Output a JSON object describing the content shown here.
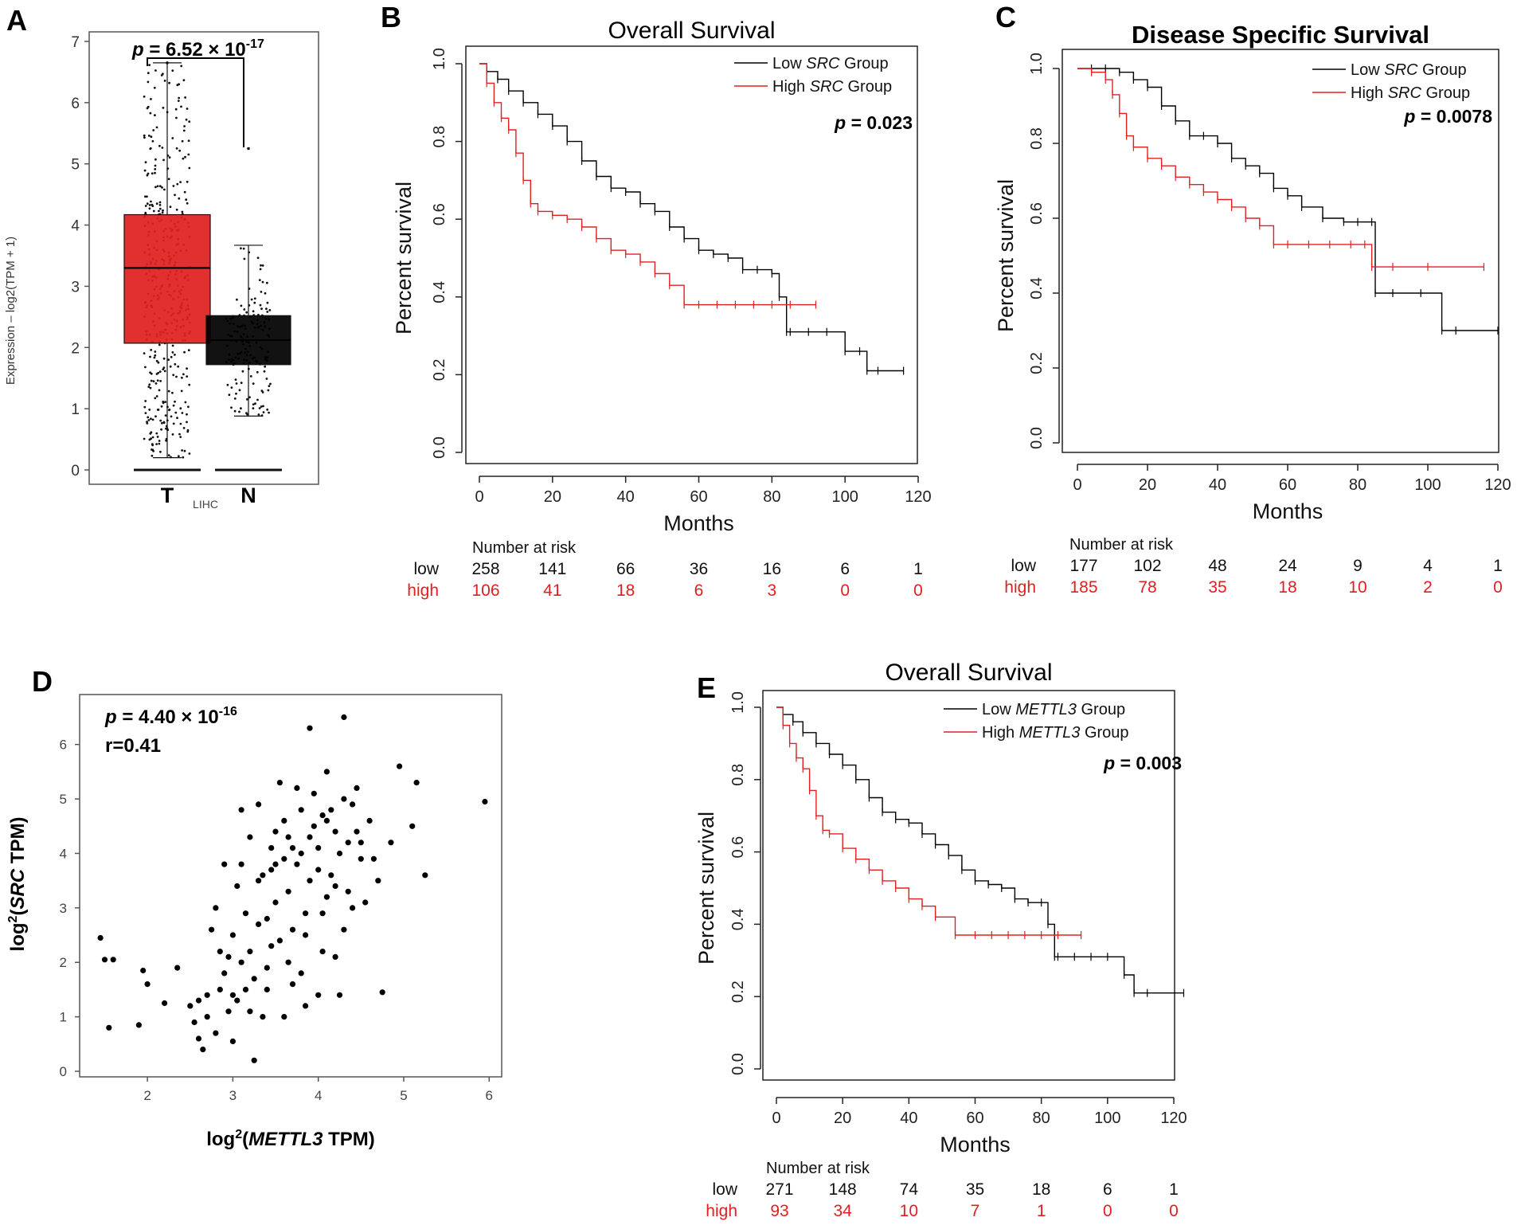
{
  "colors": {
    "low": "#000000",
    "high": "#e02020",
    "tumor": "#e02020",
    "normal": "#000000",
    "axis": "#555555"
  },
  "chart_data": [
    {
      "panel": "A",
      "type": "box",
      "ylabel": "Expression – log2(TPM + 1)",
      "ylim": [
        0,
        7
      ],
      "yticks": [
        "0",
        "1",
        "2",
        "3",
        "4",
        "5",
        "6",
        "7"
      ],
      "xlabel": "LIHC",
      "categories": [
        "T",
        "N"
      ],
      "pvalue_prefix": "p",
      "pvalue_text": " = 6.52 × 10",
      "pvalue_exp": "-17",
      "boxes": [
        {
          "name": "T",
          "whisker_low": 0.2,
          "q1": 2.07,
          "median": 3.3,
          "q3": 4.17,
          "whisker_high": 6.65,
          "max_point": 6.65
        },
        {
          "name": "N",
          "whisker_low": 0.88,
          "q1": 1.72,
          "median": 2.12,
          "q3": 2.52,
          "whisker_high": 3.67,
          "max_point": 5.25
        }
      ]
    },
    {
      "panel": "B",
      "type": "line",
      "title": "Overall Survival",
      "xlabel": "Months",
      "ylabel": "Percent survival",
      "xlim": [
        0,
        120
      ],
      "ylim": [
        0,
        1
      ],
      "xticks": [
        "0",
        "20",
        "40",
        "60",
        "80",
        "100",
        "120"
      ],
      "yticks": [
        "0.0",
        "0.2",
        "0.4",
        "0.6",
        "0.8",
        "1.0"
      ],
      "legend": {
        "low_prefix": "Low ",
        "high_prefix": "High ",
        "gene": "SRC",
        "suffix": " Group"
      },
      "pvalue_prefix": "p",
      "pvalue_text": " = 0.023",
      "series": [
        {
          "name": "low",
          "x": [
            0,
            2,
            5,
            8,
            12,
            16,
            20,
            24,
            28,
            32,
            36,
            40,
            44,
            48,
            52,
            56,
            60,
            64,
            68,
            72,
            76,
            80,
            82,
            84,
            85,
            90,
            95,
            100,
            104,
            106,
            109,
            116
          ],
          "y": [
            1,
            0.98,
            0.96,
            0.93,
            0.9,
            0.87,
            0.84,
            0.8,
            0.75,
            0.71,
            0.68,
            0.67,
            0.64,
            0.62,
            0.58,
            0.55,
            0.52,
            0.51,
            0.5,
            0.47,
            0.47,
            0.46,
            0.4,
            0.31,
            0.31,
            0.31,
            0.31,
            0.26,
            0.26,
            0.21,
            0.21,
            0.21
          ]
        },
        {
          "name": "high",
          "x": [
            0,
            2,
            4,
            6,
            8,
            10,
            12,
            14,
            16,
            20,
            24,
            28,
            32,
            36,
            40,
            44,
            48,
            52,
            56,
            60,
            65,
            70,
            75,
            80,
            85,
            92
          ],
          "y": [
            1,
            0.95,
            0.9,
            0.86,
            0.83,
            0.77,
            0.7,
            0.64,
            0.62,
            0.61,
            0.6,
            0.58,
            0.55,
            0.52,
            0.51,
            0.49,
            0.46,
            0.43,
            0.38,
            0.38,
            0.38,
            0.38,
            0.38,
            0.38,
            0.38,
            0.38
          ]
        }
      ],
      "risk": {
        "title": "Number at risk",
        "low_label": "low",
        "high_label": "high",
        "low": [
          "258",
          "141",
          "66",
          "36",
          "16",
          "6",
          "1"
        ],
        "high": [
          "106",
          "41",
          "18",
          "6",
          "3",
          "0",
          "0"
        ]
      }
    },
    {
      "panel": "C",
      "type": "line",
      "title": "Disease Specific Survival",
      "xlabel": "Months",
      "ylabel": "Percent survival",
      "xlim": [
        0,
        120
      ],
      "ylim": [
        0,
        1
      ],
      "xticks": [
        "0",
        "20",
        "40",
        "60",
        "80",
        "100",
        "120"
      ],
      "yticks": [
        "0.0",
        "0.2",
        "0.4",
        "0.6",
        "0.8",
        "1.0"
      ],
      "legend": {
        "low_prefix": "Low ",
        "high_prefix": "High ",
        "gene": "SRC",
        "suffix": " Group"
      },
      "pvalue_prefix": "p",
      "pvalue_text": " = 0.0078",
      "series": [
        {
          "name": "low",
          "x": [
            0,
            4,
            8,
            12,
            16,
            20,
            24,
            28,
            32,
            36,
            40,
            44,
            48,
            52,
            56,
            60,
            64,
            70,
            76,
            80,
            84,
            85,
            90,
            98,
            104,
            108,
            120
          ],
          "y": [
            1,
            1,
            1,
            0.99,
            0.97,
            0.95,
            0.9,
            0.86,
            0.82,
            0.82,
            0.8,
            0.76,
            0.74,
            0.72,
            0.68,
            0.66,
            0.63,
            0.6,
            0.59,
            0.59,
            0.59,
            0.4,
            0.4,
            0.4,
            0.3,
            0.3,
            0.3
          ]
        },
        {
          "name": "high",
          "x": [
            0,
            4,
            8,
            10,
            12,
            14,
            16,
            20,
            24,
            28,
            32,
            36,
            40,
            44,
            48,
            52,
            56,
            60,
            66,
            72,
            78,
            82,
            84,
            90,
            100,
            116
          ],
          "y": [
            1,
            0.99,
            0.97,
            0.93,
            0.88,
            0.82,
            0.79,
            0.76,
            0.74,
            0.71,
            0.69,
            0.67,
            0.65,
            0.63,
            0.6,
            0.58,
            0.53,
            0.53,
            0.53,
            0.53,
            0.53,
            0.53,
            0.47,
            0.47,
            0.47,
            0.47
          ]
        }
      ],
      "risk": {
        "title": "Number at risk",
        "low_label": "low",
        "high_label": "high",
        "low": [
          "177",
          "102",
          "48",
          "24",
          "9",
          "4",
          "1"
        ],
        "high": [
          "185",
          "78",
          "35",
          "18",
          "10",
          "2",
          "0"
        ]
      }
    },
    {
      "panel": "D",
      "type": "scatter",
      "xlabel_prefix": "log",
      "xlabel_sup": "2",
      "xlabel_gene": "METTL3",
      "xlabel_suffix": " TPM)",
      "ylabel_prefix": "log",
      "ylabel_sup": "2",
      "ylabel_gene": "SRC",
      "ylabel_suffix": " TPM)",
      "xlim": [
        1.3,
        6.1
      ],
      "ylim": [
        0,
        6.8
      ],
      "xticks": [
        "2",
        "3",
        "4",
        "5",
        "6"
      ],
      "yticks": [
        "0",
        "1",
        "2",
        "3",
        "4",
        "5",
        "6"
      ],
      "pvalue_prefix": "p",
      "pvalue_text": " = 4.40 × 10",
      "pvalue_exp": "-16",
      "r_text": "r=0.41",
      "points": [
        [
          1.45,
          2.45
        ],
        [
          1.5,
          2.05
        ],
        [
          1.6,
          2.05
        ],
        [
          1.55,
          0.8
        ],
        [
          1.9,
          0.85
        ],
        [
          1.95,
          1.85
        ],
        [
          2.0,
          1.6
        ],
        [
          2.2,
          1.25
        ],
        [
          2.35,
          1.9
        ],
        [
          2.5,
          1.2
        ],
        [
          2.55,
          0.9
        ],
        [
          2.6,
          0.6
        ],
        [
          2.65,
          0.4
        ],
        [
          2.7,
          1.4
        ],
        [
          2.75,
          2.6
        ],
        [
          2.8,
          3.0
        ],
        [
          2.85,
          2.2
        ],
        [
          2.9,
          3.8
        ],
        [
          2.95,
          1.1
        ],
        [
          3.0,
          0.55
        ],
        [
          3.05,
          3.4
        ],
        [
          3.1,
          2.0
        ],
        [
          3.15,
          1.5
        ],
        [
          3.2,
          4.3
        ],
        [
          3.25,
          0.2
        ],
        [
          3.3,
          2.7
        ],
        [
          3.35,
          3.6
        ],
        [
          3.4,
          1.9
        ],
        [
          3.45,
          4.1
        ],
        [
          3.5,
          3.1
        ],
        [
          3.55,
          2.4
        ],
        [
          3.6,
          4.6
        ],
        [
          3.65,
          3.3
        ],
        [
          3.7,
          1.6
        ],
        [
          3.75,
          5.2
        ],
        [
          3.8,
          4.0
        ],
        [
          3.85,
          2.9
        ],
        [
          3.9,
          6.3
        ],
        [
          3.95,
          4.5
        ],
        [
          4.0,
          3.7
        ],
        [
          4.05,
          2.2
        ],
        [
          4.1,
          5.5
        ],
        [
          4.15,
          4.8
        ],
        [
          4.2,
          3.4
        ],
        [
          4.25,
          1.4
        ],
        [
          4.3,
          6.5
        ],
        [
          4.35,
          4.2
        ],
        [
          4.4,
          3.0
        ],
        [
          4.45,
          5.2
        ],
        [
          4.5,
          3.9
        ],
        [
          4.6,
          4.6
        ],
        [
          4.7,
          3.5
        ],
        [
          4.75,
          1.45
        ],
        [
          4.85,
          4.2
        ],
        [
          4.95,
          5.6
        ],
        [
          5.1,
          4.5
        ],
        [
          5.15,
          5.3
        ],
        [
          5.25,
          3.6
        ],
        [
          5.95,
          4.95
        ],
        [
          2.7,
          1.0
        ],
        [
          2.9,
          1.8
        ],
        [
          3.0,
          2.5
        ],
        [
          3.1,
          3.8
        ],
        [
          3.2,
          2.2
        ],
        [
          3.3,
          4.9
        ],
        [
          3.4,
          2.8
        ],
        [
          3.5,
          4.4
        ],
        [
          3.6,
          3.9
        ],
        [
          3.7,
          2.6
        ],
        [
          3.8,
          4.8
        ],
        [
          3.9,
          3.5
        ],
        [
          4.0,
          4.1
        ],
        [
          4.1,
          3.2
        ],
        [
          4.2,
          4.4
        ],
        [
          4.3,
          2.6
        ],
        [
          4.4,
          4.9
        ],
        [
          3.05,
          1.3
        ],
        [
          3.15,
          2.9
        ],
        [
          3.35,
          1.0
        ],
        [
          3.45,
          3.7
        ],
        [
          3.55,
          5.3
        ],
        [
          3.65,
          4.3
        ],
        [
          3.75,
          3.8
        ],
        [
          3.85,
          1.2
        ],
        [
          3.95,
          5.1
        ],
        [
          4.05,
          4.7
        ],
        [
          4.15,
          3.6
        ],
        [
          4.25,
          4.0
        ],
        [
          4.35,
          3.3
        ],
        [
          2.85,
          1.5
        ],
        [
          2.95,
          2.1
        ],
        [
          3.25,
          1.7
        ],
        [
          3.45,
          2.3
        ],
        [
          3.65,
          2.0
        ],
        [
          3.85,
          2.5
        ],
        [
          4.05,
          2.9
        ],
        [
          4.45,
          4.4
        ],
        [
          4.55,
          3.1
        ],
        [
          2.6,
          1.3
        ],
        [
          2.8,
          0.7
        ],
        [
          3.0,
          1.4
        ],
        [
          3.2,
          1.1
        ],
        [
          3.4,
          1.5
        ],
        [
          3.6,
          1.0
        ],
        [
          3.8,
          1.8
        ],
        [
          4.0,
          1.4
        ],
        [
          4.2,
          2.1
        ],
        [
          3.1,
          4.8
        ],
        [
          3.3,
          3.5
        ],
        [
          3.5,
          3.8
        ],
        [
          3.7,
          4.1
        ],
        [
          3.9,
          4.3
        ],
        [
          4.1,
          4.6
        ],
        [
          4.3,
          5.0
        ],
        [
          4.5,
          4.2
        ],
        [
          4.65,
          3.9
        ]
      ]
    },
    {
      "panel": "E",
      "type": "line",
      "title": "Overall Survival",
      "xlabel": "Months",
      "ylabel": "Percent survival",
      "xlim": [
        0,
        120
      ],
      "ylim": [
        0,
        1
      ],
      "xticks": [
        "0",
        "20",
        "40",
        "60",
        "80",
        "100",
        "120"
      ],
      "yticks": [
        "0.0",
        "0.2",
        "0.4",
        "0.6",
        "0.8",
        "1.0"
      ],
      "legend": {
        "low_prefix": "Low ",
        "high_prefix": "High ",
        "gene": "METTL3",
        "suffix": " Group"
      },
      "pvalue_prefix": "p",
      "pvalue_text": " = 0.003",
      "series": [
        {
          "name": "low",
          "x": [
            0,
            2,
            5,
            8,
            12,
            16,
            20,
            24,
            28,
            32,
            36,
            40,
            44,
            48,
            52,
            56,
            60,
            64,
            68,
            72,
            76,
            80,
            82,
            84,
            85,
            90,
            95,
            100,
            105,
            108,
            112,
            123
          ],
          "y": [
            1,
            0.98,
            0.96,
            0.93,
            0.9,
            0.87,
            0.84,
            0.8,
            0.75,
            0.71,
            0.69,
            0.68,
            0.65,
            0.62,
            0.59,
            0.55,
            0.52,
            0.51,
            0.5,
            0.47,
            0.46,
            0.46,
            0.4,
            0.31,
            0.31,
            0.31,
            0.31,
            0.31,
            0.26,
            0.21,
            0.21,
            0.21
          ]
        },
        {
          "name": "high",
          "x": [
            0,
            2,
            4,
            6,
            8,
            10,
            12,
            14,
            16,
            20,
            24,
            28,
            32,
            36,
            40,
            44,
            48,
            54,
            60,
            65,
            70,
            75,
            80,
            85,
            92
          ],
          "y": [
            1,
            0.95,
            0.9,
            0.86,
            0.83,
            0.77,
            0.7,
            0.66,
            0.65,
            0.61,
            0.58,
            0.55,
            0.52,
            0.5,
            0.47,
            0.45,
            0.42,
            0.37,
            0.37,
            0.37,
            0.37,
            0.37,
            0.37,
            0.37,
            0.37
          ]
        }
      ],
      "risk": {
        "title": "Number at risk",
        "low_label": "low",
        "high_label": "high",
        "low": [
          "271",
          "148",
          "74",
          "35",
          "18",
          "6",
          "1"
        ],
        "high": [
          "93",
          "34",
          "10",
          "7",
          "1",
          "0",
          "0"
        ]
      }
    }
  ]
}
